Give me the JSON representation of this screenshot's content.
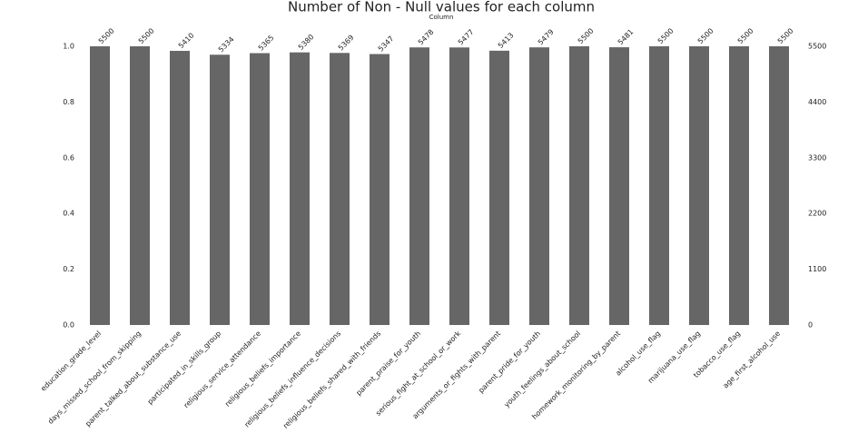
{
  "chart_data": {
    "type": "bar",
    "title": "Number of Non - Null values for each column",
    "x_label": "Column",
    "categories": [
      "education_grade_level",
      "days_missed_school_from_skipping",
      "parent_talked_about_substance_use",
      "participated_in_skills_group",
      "religious_service_attendance",
      "religious_beliefs_importance",
      "religious_beliefs_influence_decisions",
      "religious_beliefs_shared_with_friends",
      "parent_praise_for_youth",
      "serious_fight_at_school_or_work",
      "arguments_or_fights_with_parent",
      "parent_pride_for_youth",
      "youth_feelings_about_school",
      "homework_monitoring_by_parent",
      "alcohol_use_flag",
      "marijuana_use_flag",
      "tobacco_use_flag",
      "age_first_alcohol_use"
    ],
    "series": [
      {
        "color": "#666666",
        "axis": "y2",
        "values": [
          5500,
          5500,
          5410,
          5334,
          5365,
          5380,
          5369,
          5347,
          5478,
          5477,
          5413,
          5479,
          5500,
          5481,
          5500,
          5500,
          5500,
          5500
        ]
      }
    ],
    "ylim": [
      0,
      1
    ],
    "yticks": [
      {
        "value": 0,
        "label": "0.0"
      },
      {
        "value": 0.2,
        "label": "0.2"
      },
      {
        "value": 0.4,
        "label": "0.4"
      },
      {
        "value": 0.6,
        "label": "0.6"
      },
      {
        "value": 0.8,
        "label": "0.8"
      },
      {
        "value": 1,
        "label": "1.0"
      }
    ],
    "y2lim": [
      0,
      5500
    ],
    "y2ticks": [
      0,
      1100,
      2200,
      3300,
      4400,
      5500
    ]
  }
}
